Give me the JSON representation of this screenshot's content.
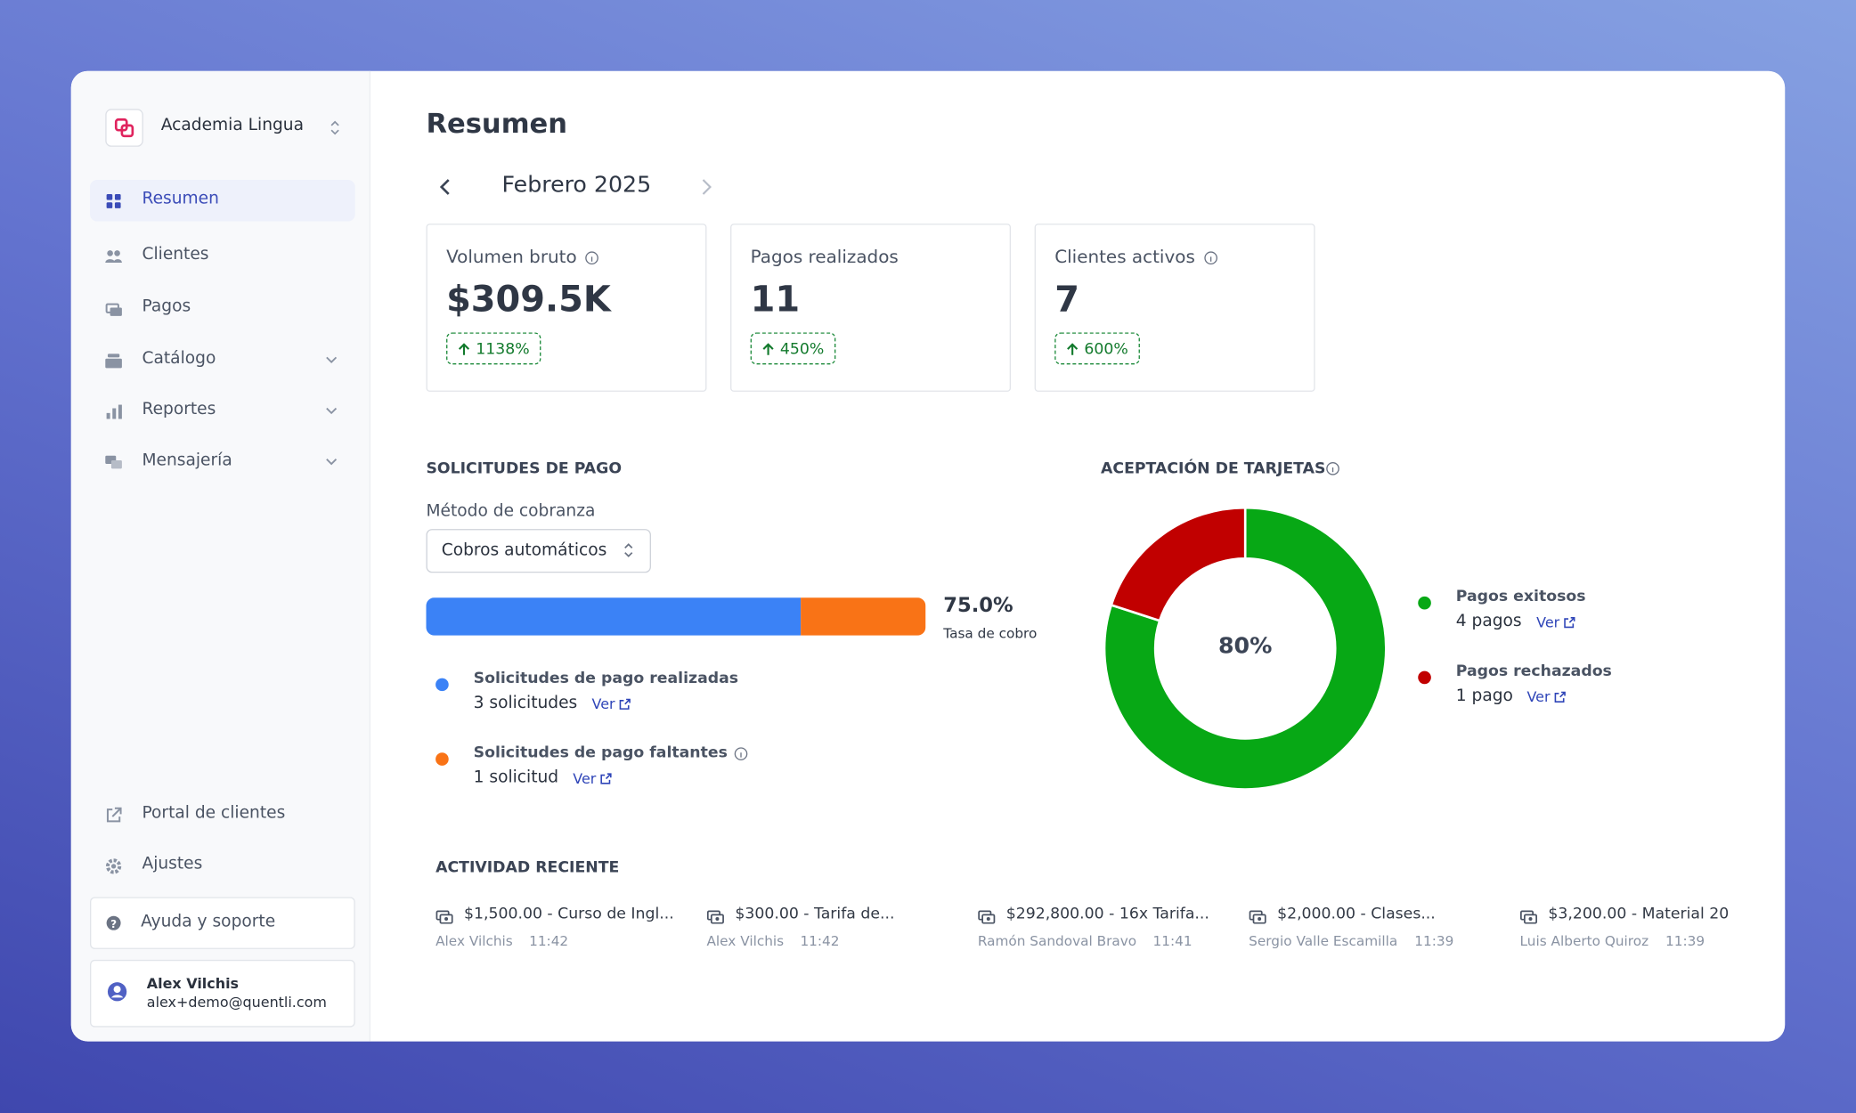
{
  "sidebar": {
    "org": "Academia Lingua",
    "nav": [
      {
        "label": "Resumen"
      },
      {
        "label": "Clientes"
      },
      {
        "label": "Pagos"
      },
      {
        "label": "Catálogo"
      },
      {
        "label": "Reportes"
      },
      {
        "label": "Mensajería"
      }
    ],
    "footer_nav": [
      {
        "label": "Portal de clientes"
      },
      {
        "label": "Ajustes"
      }
    ],
    "help": "Ayuda y soporte",
    "user": {
      "name": "Alex Vilchis",
      "email": "alex+demo@quentli.com"
    }
  },
  "header": {
    "title": "Resumen",
    "period": "Febrero 2025"
  },
  "stats": [
    {
      "label": "Volumen bruto",
      "value": "$309.5K",
      "change": "1138%"
    },
    {
      "label": "Pagos realizados",
      "value": "11",
      "change": "450%"
    },
    {
      "label": "Clientes activos",
      "value": "7",
      "change": "600%"
    }
  ],
  "payment_requests": {
    "title": "SOLICITUDES DE PAGO",
    "filter_label": "Método de cobranza",
    "filter_value": "Cobros automáticos",
    "rate": "75.0%",
    "rate_label": "Tasa de cobro",
    "items": [
      {
        "name": "Solicitudes de pago realizadas",
        "count": 3,
        "count_label": "3 solicitudes",
        "link": "Ver",
        "color": "#3b82f6"
      },
      {
        "name": "Solicitudes de pago faltantes",
        "count": 1,
        "count_label": "1 solicitud",
        "link": "Ver",
        "color": "#f97316"
      }
    ]
  },
  "card_acceptance": {
    "title": "ACEPTACIÓN DE TARJETAS",
    "center_label": "80%",
    "items": [
      {
        "name": "Pagos exitosos",
        "count": 4,
        "count_label": "4 pagos",
        "link": "Ver",
        "color": "#07a815"
      },
      {
        "name": "Pagos rechazados",
        "count": 1,
        "count_label": "1 pago",
        "link": "Ver",
        "color": "#c10000"
      }
    ]
  },
  "activity": {
    "title": "ACTIVIDAD RECIENTE",
    "items": [
      {
        "text": "$1,500.00 - Curso de Ingl...",
        "client": "Alex Vilchis",
        "time": "11:42"
      },
      {
        "text": "$300.00 - Tarifa de...",
        "client": "Alex Vilchis",
        "time": "11:42"
      },
      {
        "text": "$292,800.00 - 16x Tarifa...",
        "client": "Ramón Sandoval Bravo",
        "time": "11:41"
      },
      {
        "text": "$2,000.00 - Clases...",
        "client": "Sergio Valle Escamilla",
        "time": "11:39"
      },
      {
        "text": "$3,200.00 - Material 20",
        "client": "Luis Alberto Quiroz",
        "time": "11:39"
      }
    ]
  }
}
